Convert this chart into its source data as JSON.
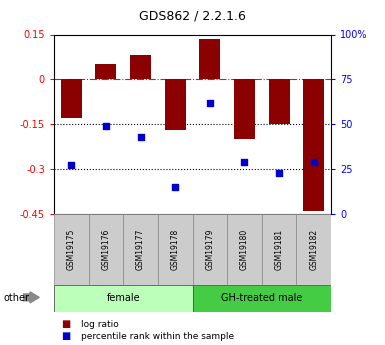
{
  "title": "GDS862 / 2.2.1.6",
  "samples": [
    "GSM19175",
    "GSM19176",
    "GSM19177",
    "GSM19178",
    "GSM19179",
    "GSM19180",
    "GSM19181",
    "GSM19182"
  ],
  "log_ratio": [
    -0.13,
    0.05,
    0.08,
    -0.17,
    0.135,
    -0.2,
    -0.15,
    -0.44
  ],
  "percentile_rank": [
    27,
    49,
    43,
    15,
    62,
    29,
    23,
    29
  ],
  "ylim_left": [
    -0.45,
    0.15
  ],
  "ylim_right": [
    0,
    100
  ],
  "yticks_left": [
    0.15,
    0.0,
    -0.15,
    -0.3,
    -0.45
  ],
  "yticks_left_labels": [
    "0.15",
    "0",
    "-0.15",
    "-0.3",
    "-0.45"
  ],
  "yticks_right": [
    100,
    75,
    50,
    25,
    0
  ],
  "yticks_right_labels": [
    "100%",
    "75",
    "50",
    "25",
    "0"
  ],
  "groups": [
    {
      "label": "female",
      "color": "#bbffbb",
      "indices": [
        0,
        1,
        2,
        3
      ]
    },
    {
      "label": "GH-treated male",
      "color": "#44cc44",
      "indices": [
        4,
        5,
        6,
        7
      ]
    }
  ],
  "bar_color": "#8B0000",
  "dot_color": "#0000CD",
  "bar_width": 0.6,
  "dot_size": 20,
  "legend_labels": [
    "log ratio",
    "percentile rank within the sample"
  ],
  "legend_colors": [
    "#8B0000",
    "#0000CD"
  ],
  "other_label": "other"
}
